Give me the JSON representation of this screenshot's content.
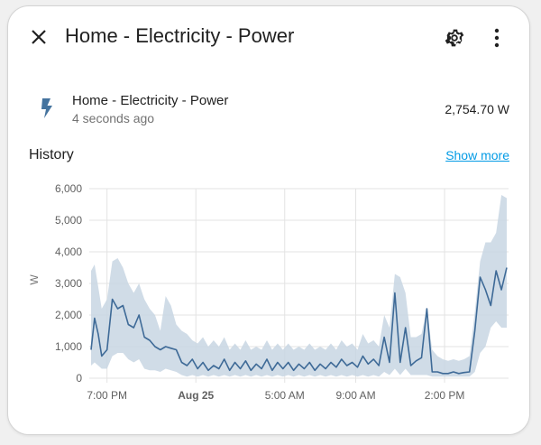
{
  "dialog": {
    "title": "Home - Electricity - Power"
  },
  "entity": {
    "name": "Home - Electricity - Power",
    "last_changed": "4 seconds ago",
    "value": "2,754.70 W",
    "icon": "flash-icon"
  },
  "history": {
    "label": "History",
    "show_more": "Show more"
  },
  "colors": {
    "line": "#3e6a97",
    "band": "#c8d6e3",
    "link": "#039be5"
  },
  "chart_data": {
    "type": "line",
    "ylabel": "W",
    "ylim": [
      0,
      6000
    ],
    "y_ticks": [
      "0",
      "1,000",
      "2,000",
      "3,000",
      "4,000",
      "5,000",
      "6,000"
    ],
    "x_ticks": [
      {
        "label": "7:00 PM",
        "hour": 0,
        "bold": false
      },
      {
        "label": "Aug 25",
        "hour": 5,
        "bold": true
      },
      {
        "label": "5:00 AM",
        "hour": 10,
        "bold": false
      },
      {
        "label": "9:00 AM",
        "hour": 14,
        "bold": false
      },
      {
        "label": "2:00 PM",
        "hour": 19,
        "bold": false
      }
    ],
    "series": [
      {
        "x": [
          -0.9,
          -0.7,
          -0.5,
          -0.3,
          0,
          0.3,
          0.6,
          0.9,
          1.2,
          1.5,
          1.8,
          2.1,
          2.4,
          2.7,
          3,
          3.3,
          3.6,
          3.9,
          4.2,
          4.5,
          4.8,
          5.1,
          5.4,
          5.7,
          6,
          6.3,
          6.6,
          6.9,
          7.2,
          7.5,
          7.8,
          8.1,
          8.4,
          8.7,
          9,
          9.3,
          9.6,
          9.9,
          10.2,
          10.5,
          10.8,
          11.1,
          11.4,
          11.7,
          12,
          12.3,
          12.6,
          12.9,
          13.2,
          13.5,
          13.8,
          14.1,
          14.4,
          14.7,
          15,
          15.3,
          15.6,
          15.9,
          16.2,
          16.5,
          16.8,
          17.1,
          17.4,
          17.7,
          18,
          18.3,
          18.6,
          18.9,
          19.2,
          19.5,
          19.8,
          20.1,
          20.4,
          20.7,
          21,
          21.3,
          21.6,
          21.9,
          22.2,
          22.5
        ],
        "avg": [
          900,
          1900,
          1400,
          700,
          900,
          2500,
          2200,
          2300,
          1700,
          1600,
          2000,
          1300,
          1200,
          1000,
          900,
          1000,
          950,
          900,
          500,
          400,
          600,
          300,
          500,
          250,
          400,
          300,
          600,
          250,
          500,
          300,
          550,
          250,
          450,
          300,
          600,
          250,
          500,
          300,
          500,
          250,
          450,
          300,
          500,
          250,
          450,
          300,
          500,
          350,
          600,
          400,
          500,
          350,
          700,
          450,
          600,
          400,
          1300,
          500,
          2700,
          500,
          1600,
          400,
          550,
          650,
          2200,
          200,
          200,
          150,
          150,
          200,
          150,
          180,
          200,
          1500,
          3200,
          2800,
          2300,
          3400,
          2800,
          3500
        ],
        "max": [
          3400,
          3600,
          2900,
          2200,
          2500,
          3700,
          3800,
          3500,
          3000,
          2700,
          3000,
          2500,
          2200,
          2000,
          1500,
          2600,
          2300,
          1700,
          1500,
          1400,
          1200,
          1100,
          1300,
          1000,
          1200,
          1000,
          1300,
          900,
          1100,
          900,
          1200,
          900,
          1000,
          900,
          1200,
          900,
          1100,
          900,
          1100,
          900,
          1000,
          900,
          1100,
          900,
          1000,
          900,
          1100,
          900,
          1200,
          1000,
          1100,
          900,
          1400,
          1100,
          1200,
          1000,
          2000,
          1600,
          3300,
          3200,
          2700,
          1300,
          1300,
          1400,
          2200,
          900,
          700,
          600,
          550,
          600,
          550,
          600,
          700,
          2100,
          3700,
          4300,
          4300,
          4600,
          5800,
          5700
        ],
        "min": [
          400,
          500,
          400,
          300,
          300,
          700,
          800,
          800,
          600,
          500,
          600,
          300,
          250,
          250,
          200,
          300,
          250,
          200,
          100,
          50,
          100,
          50,
          100,
          50,
          100,
          50,
          100,
          50,
          100,
          50,
          100,
          50,
          100,
          50,
          100,
          50,
          100,
          50,
          100,
          50,
          100,
          50,
          100,
          50,
          100,
          50,
          100,
          50,
          100,
          50,
          100,
          50,
          100,
          50,
          100,
          50,
          200,
          100,
          300,
          100,
          300,
          100,
          100,
          100,
          100,
          50,
          50,
          50,
          50,
          50,
          50,
          50,
          50,
          200,
          800,
          1000,
          1600,
          1800,
          1600,
          1600
        ]
      }
    ],
    "x_range_hours": [
      -1,
      22.6
    ]
  }
}
